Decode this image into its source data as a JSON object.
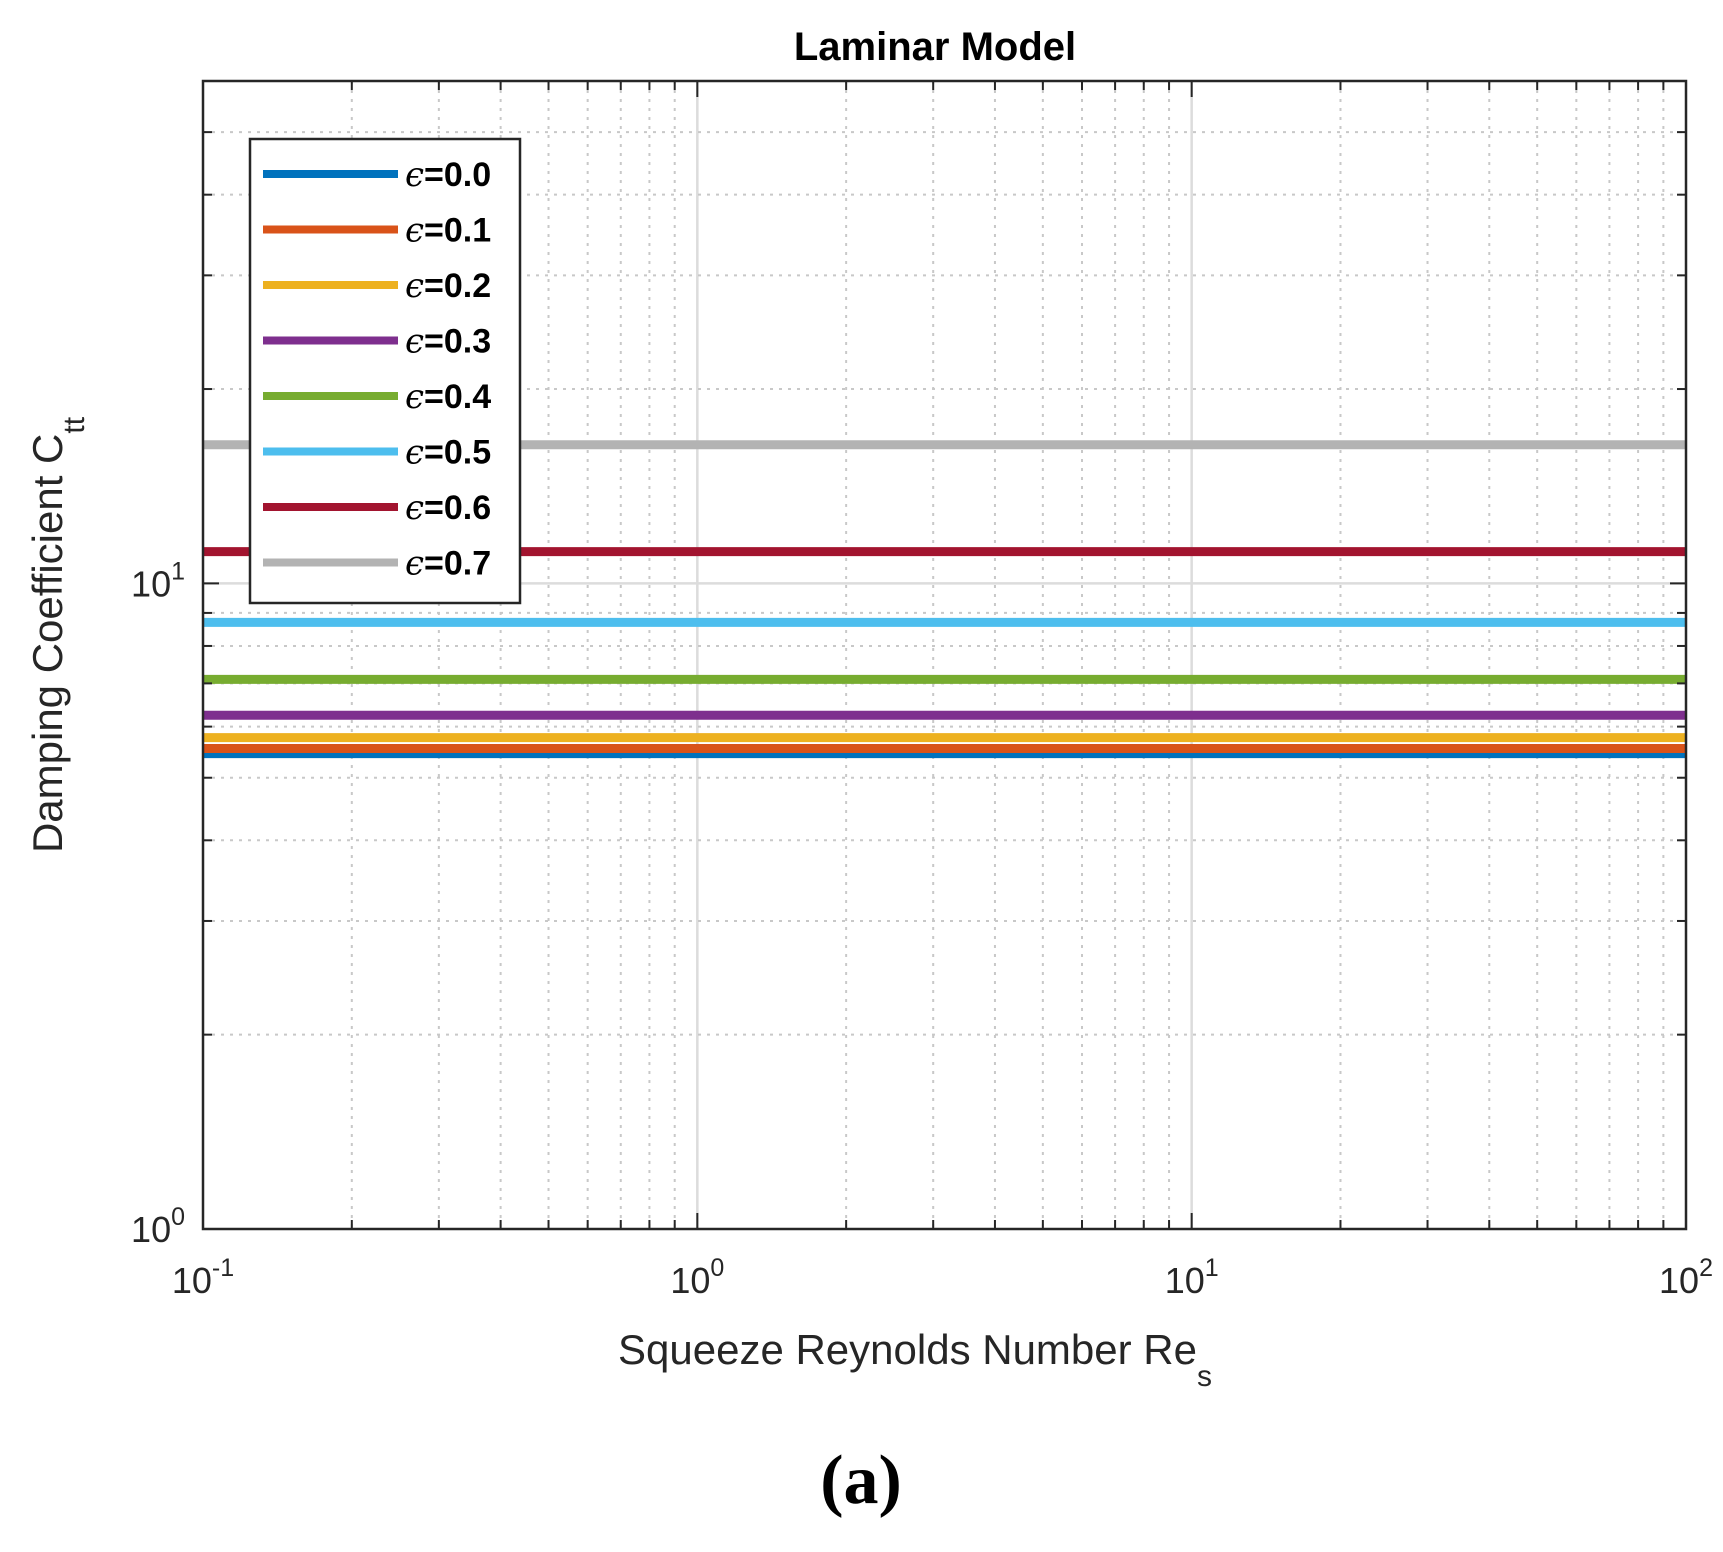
{
  "chart_data": {
    "type": "line",
    "title": "Laminar Model",
    "xlabel": "Squeeze Reynolds Number Re",
    "xlabel_subscript": "s",
    "ylabel": "Damping Coefficient C",
    "ylabel_subscript": "tt",
    "xscale": "log",
    "yscale": "log",
    "xlim": [
      0.1,
      100
    ],
    "ylim": [
      1,
      60
    ],
    "grid": true,
    "legend_position": "top-left",
    "x_ticks": [
      {
        "base": "10",
        "exp": "-1"
      },
      {
        "base": "10",
        "exp": "0"
      },
      {
        "base": "10",
        "exp": "1"
      },
      {
        "base": "10",
        "exp": "2"
      }
    ],
    "y_ticks": [
      {
        "base": "10",
        "exp": "0"
      },
      {
        "base": "10",
        "exp": "1"
      }
    ],
    "x": [
      0.1,
      100
    ],
    "series": [
      {
        "name": "ε=0.0",
        "label": "=0.0",
        "color": "#0072BD",
        "values": [
          5.45,
          5.45
        ]
      },
      {
        "name": "ε=0.1",
        "label": "=0.1",
        "color": "#D95319",
        "values": [
          5.55,
          5.55
        ]
      },
      {
        "name": "ε=0.2",
        "label": "=0.2",
        "color": "#EDB120",
        "values": [
          5.77,
          5.77
        ]
      },
      {
        "name": "ε=0.3",
        "label": "=0.3",
        "color": "#7E2F8E",
        "values": [
          6.25,
          6.25
        ]
      },
      {
        "name": "ε=0.4",
        "label": "=0.4",
        "color": "#77AC30",
        "values": [
          7.1,
          7.1
        ]
      },
      {
        "name": "ε=0.5",
        "label": "=0.5",
        "color": "#4DBEEE",
        "values": [
          8.7,
          8.7
        ]
      },
      {
        "name": "ε=0.6",
        "label": "=0.6",
        "color": "#A2142F",
        "values": [
          11.2,
          11.2
        ]
      },
      {
        "name": "ε=0.7",
        "label": "=0.7",
        "color": "#B3B3B3",
        "values": [
          16.4,
          16.4
        ]
      }
    ],
    "legend_symbol": "ϵ"
  },
  "panel_label": "(a)"
}
